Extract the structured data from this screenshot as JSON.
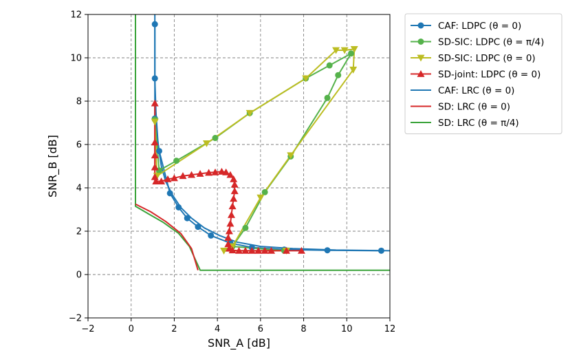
{
  "chart_data": {
    "type": "line",
    "xlabel": "SNR_A [dB]",
    "ylabel": "SNR_B [dB]",
    "xlim": [
      -2,
      12
    ],
    "ylim": [
      -2,
      12
    ],
    "xticks": [
      -2,
      0,
      2,
      4,
      6,
      8,
      10,
      12
    ],
    "yticks": [
      -2,
      0,
      2,
      4,
      6,
      8,
      10,
      12
    ],
    "tick_labels_x": [
      "−2",
      "0",
      "2",
      "4",
      "6",
      "8",
      "10",
      "12"
    ],
    "tick_labels_y": [
      "−2",
      "0",
      "2",
      "4",
      "6",
      "8",
      "10",
      "12"
    ],
    "grid": true,
    "legend_position": "outside-top-right",
    "series": [
      {
        "name": "CAF: LDPC (θ = 0)",
        "color": "#1f77b4",
        "marker": "circle",
        "points": [
          [
            1.1,
            11.55
          ],
          [
            1.1,
            9.05
          ],
          [
            1.1,
            7.2
          ],
          [
            1.3,
            5.7
          ],
          [
            1.8,
            3.75
          ],
          [
            2.2,
            3.1
          ],
          [
            2.6,
            2.6
          ],
          [
            3.1,
            2.2
          ],
          [
            3.7,
            1.8
          ],
          [
            4.6,
            1.45
          ],
          [
            5.6,
            1.25
          ],
          [
            7.1,
            1.15
          ],
          [
            9.1,
            1.12
          ],
          [
            11.6,
            1.1
          ]
        ]
      },
      {
        "name": "SD-SIC: LDPC (θ = π/4)",
        "color": "#55b24b",
        "marker": "circle",
        "points": [
          [
            1.1,
            7.15
          ],
          [
            1.3,
            4.8
          ],
          [
            2.1,
            5.25
          ],
          [
            3.9,
            6.3
          ],
          [
            5.5,
            7.45
          ],
          [
            8.1,
            9.05
          ],
          [
            9.2,
            9.65
          ],
          [
            10.2,
            10.2
          ],
          [
            9.6,
            9.2
          ],
          [
            9.1,
            8.15
          ],
          [
            7.4,
            5.45
          ],
          [
            6.2,
            3.8
          ],
          [
            5.3,
            2.15
          ],
          [
            4.7,
            1.3
          ],
          [
            7.1,
            1.1
          ]
        ]
      },
      {
        "name": "SD-SIC: LDPC (θ = 0)",
        "color": "#bcbd22",
        "marker": "triangle-down",
        "points": [
          [
            1.1,
            7.05
          ],
          [
            1.2,
            4.55
          ],
          [
            3.5,
            6.05
          ],
          [
            5.5,
            7.45
          ],
          [
            8.1,
            9.05
          ],
          [
            9.5,
            10.35
          ],
          [
            9.9,
            10.35
          ],
          [
            10.35,
            10.4
          ],
          [
            10.3,
            9.45
          ],
          [
            7.4,
            5.5
          ],
          [
            6.0,
            3.55
          ],
          [
            4.7,
            1.3
          ],
          [
            4.3,
            1.1
          ],
          [
            7.2,
            1.1
          ]
        ]
      },
      {
        "name": "SD-joint: LDPC (θ = 0)",
        "color": "#d62728",
        "marker": "triangle-up",
        "points": [
          [
            1.1,
            7.9
          ],
          [
            1.1,
            6.1
          ],
          [
            1.1,
            5.5
          ],
          [
            1.1,
            4.95
          ],
          [
            1.1,
            4.5
          ],
          [
            1.15,
            4.3
          ],
          [
            1.4,
            4.3
          ],
          [
            1.7,
            4.4
          ],
          [
            2.0,
            4.45
          ],
          [
            2.4,
            4.55
          ],
          [
            2.8,
            4.6
          ],
          [
            3.2,
            4.65
          ],
          [
            3.6,
            4.7
          ],
          [
            3.9,
            4.72
          ],
          [
            4.2,
            4.75
          ],
          [
            4.4,
            4.72
          ],
          [
            4.6,
            4.6
          ],
          [
            4.75,
            4.4
          ],
          [
            4.8,
            4.15
          ],
          [
            4.8,
            3.85
          ],
          [
            4.75,
            3.5
          ],
          [
            4.7,
            3.15
          ],
          [
            4.65,
            2.75
          ],
          [
            4.6,
            2.35
          ],
          [
            4.55,
            2.0
          ],
          [
            4.5,
            1.7
          ],
          [
            4.5,
            1.4
          ],
          [
            4.55,
            1.2
          ],
          [
            4.7,
            1.12
          ],
          [
            5.0,
            1.1
          ],
          [
            5.3,
            1.1
          ],
          [
            5.6,
            1.1
          ],
          [
            5.9,
            1.1
          ],
          [
            6.2,
            1.1
          ],
          [
            6.5,
            1.1
          ],
          [
            7.2,
            1.1
          ],
          [
            7.9,
            1.1
          ]
        ]
      },
      {
        "name": "CAF: LRC (θ = 0)",
        "color": "#1f77b4",
        "marker": "none",
        "points": [
          [
            1.1,
            12.0
          ],
          [
            1.1,
            9.0
          ],
          [
            1.15,
            7.5
          ],
          [
            1.25,
            6.0
          ],
          [
            1.4,
            5.0
          ],
          [
            1.6,
            4.3
          ],
          [
            1.9,
            3.7
          ],
          [
            2.3,
            3.1
          ],
          [
            2.8,
            2.6
          ],
          [
            3.4,
            2.15
          ],
          [
            4.1,
            1.8
          ],
          [
            4.9,
            1.5
          ],
          [
            6.0,
            1.3
          ],
          [
            7.5,
            1.2
          ],
          [
            9.5,
            1.13
          ],
          [
            12.0,
            1.1
          ]
        ]
      },
      {
        "name": "SD: LRC (θ = 0)",
        "color": "#d62728",
        "marker": "none",
        "points": [
          [
            1.1,
            7.9
          ],
          [
            1.1,
            5.0
          ],
          [
            1.1,
            4.3
          ],
          [
            1.15,
            4.3
          ]
        ]
      },
      {
        "name": "SD: LRC (θ = π/4)",
        "color": "#3aa33a",
        "marker": "none",
        "points": [
          [
            0.2,
            12.0
          ],
          [
            0.2,
            3.15
          ],
          [
            0.8,
            2.8
          ],
          [
            1.5,
            2.4
          ],
          [
            2.2,
            1.9
          ],
          [
            2.7,
            1.3
          ],
          [
            3.2,
            0.2
          ],
          [
            12.0,
            0.2
          ]
        ]
      },
      {
        "name": "",
        "color": "#d62728",
        "marker": "none",
        "points": [
          [
            0.2,
            3.25
          ],
          [
            0.9,
            2.9
          ],
          [
            1.6,
            2.45
          ],
          [
            2.3,
            1.9
          ],
          [
            2.8,
            1.2
          ],
          [
            3.1,
            0.2
          ]
        ]
      }
    ]
  }
}
